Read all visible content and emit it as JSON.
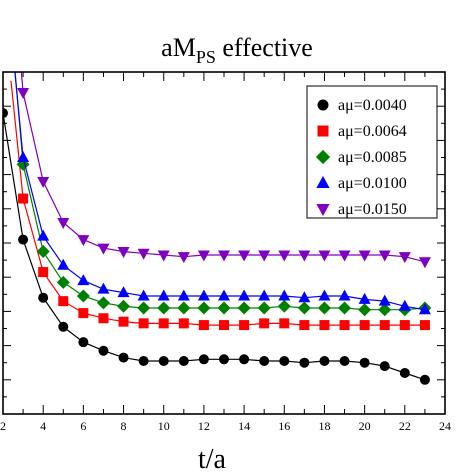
{
  "chart_data": {
    "type": "scatter",
    "title": {
      "main": "aM",
      "sub": "PS",
      "rest": " effective"
    },
    "xlabel": "t/a",
    "ylabel": "",
    "xlim": [
      2,
      24
    ],
    "ylim": [
      0.0,
      1.0
    ],
    "x_ticks": [
      2,
      4,
      6,
      8,
      10,
      12,
      14,
      16,
      18,
      20,
      22,
      24
    ],
    "grid": false,
    "legend_position": "top-right",
    "series": [
      {
        "name": "aμ=0.0040",
        "marker": "circle",
        "color": "#000000",
        "x": [
          2,
          3,
          4,
          5,
          6,
          7,
          8,
          9,
          10,
          11,
          12,
          13,
          14,
          15,
          16,
          17,
          18,
          19,
          20,
          21,
          22,
          23
        ],
        "y": [
          0.88,
          0.51,
          0.34,
          0.255,
          0.21,
          0.185,
          0.165,
          0.155,
          0.155,
          0.155,
          0.16,
          0.16,
          0.16,
          0.155,
          0.155,
          0.15,
          0.155,
          0.155,
          0.15,
          0.14,
          0.12,
          0.1
        ]
      },
      {
        "name": "aμ=0.0064",
        "marker": "square",
        "color": "#ff0000",
        "x": [
          3,
          4,
          5,
          6,
          7,
          8,
          9,
          10,
          11,
          12,
          13,
          14,
          15,
          16,
          17,
          18,
          19,
          20,
          21,
          22,
          23
        ],
        "y": [
          0.63,
          0.415,
          0.33,
          0.295,
          0.28,
          0.27,
          0.265,
          0.265,
          0.265,
          0.26,
          0.26,
          0.26,
          0.265,
          0.265,
          0.26,
          0.26,
          0.26,
          0.26,
          0.26,
          0.26,
          0.26
        ]
      },
      {
        "name": "aμ=0.0085",
        "marker": "diamond",
        "color": "#008000",
        "x": [
          3,
          4,
          5,
          6,
          7,
          8,
          9,
          10,
          11,
          12,
          13,
          14,
          15,
          16,
          17,
          18,
          19,
          20,
          21,
          22,
          23
        ],
        "y": [
          0.73,
          0.475,
          0.385,
          0.345,
          0.325,
          0.315,
          0.31,
          0.31,
          0.31,
          0.31,
          0.31,
          0.31,
          0.31,
          0.315,
          0.31,
          0.31,
          0.31,
          0.305,
          0.305,
          0.305,
          0.31
        ]
      },
      {
        "name": "aμ=0.0100",
        "marker": "triangle-up",
        "color": "#0000ff",
        "x": [
          3,
          4,
          5,
          6,
          7,
          8,
          9,
          10,
          11,
          12,
          13,
          14,
          15,
          16,
          17,
          18,
          19,
          20,
          21,
          22,
          23
        ],
        "y": [
          0.75,
          0.52,
          0.435,
          0.39,
          0.365,
          0.355,
          0.345,
          0.345,
          0.345,
          0.345,
          0.345,
          0.345,
          0.345,
          0.345,
          0.34,
          0.345,
          0.345,
          0.335,
          0.33,
          0.315,
          0.305
        ]
      },
      {
        "name": "aμ=0.0150",
        "marker": "triangle-down",
        "color": "#8000c0",
        "x": [
          3,
          4,
          5,
          6,
          7,
          8,
          9,
          10,
          11,
          12,
          13,
          14,
          15,
          16,
          17,
          18,
          19,
          20,
          21,
          22,
          23
        ],
        "y": [
          0.94,
          0.68,
          0.56,
          0.51,
          0.485,
          0.475,
          0.47,
          0.465,
          0.46,
          0.465,
          0.465,
          0.465,
          0.465,
          0.465,
          0.465,
          0.465,
          0.465,
          0.465,
          0.465,
          0.46,
          0.445
        ]
      }
    ]
  }
}
